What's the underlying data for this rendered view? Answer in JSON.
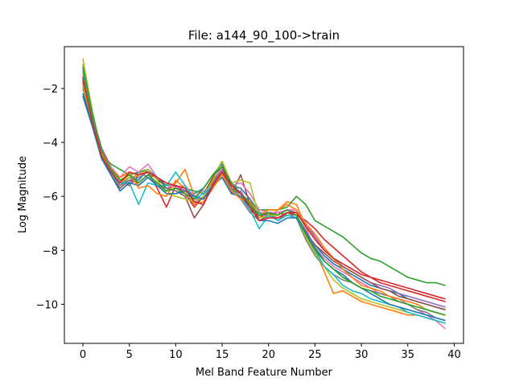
{
  "chart_data": {
    "type": "line",
    "title": "File: a144_90_100->train",
    "xlabel": "Mel Band Feature Number",
    "ylabel": "Log Magnitude",
    "xlim": [
      -2,
      41
    ],
    "ylim": [
      -11.45,
      -0.45
    ],
    "xticks": [
      0,
      5,
      10,
      15,
      20,
      25,
      30,
      35,
      40
    ],
    "yticks": [
      -2,
      -4,
      -6,
      -8,
      -10
    ],
    "grid": false,
    "legend": "none",
    "colors": [
      "#1f77b4",
      "#ff7f0e",
      "#2ca02c",
      "#d62728",
      "#9467bd",
      "#8c564b",
      "#e377c2",
      "#7f7f7f",
      "#bcbd22",
      "#17becf"
    ],
    "x": [
      0,
      1,
      2,
      3,
      4,
      5,
      6,
      7,
      8,
      9,
      10,
      11,
      12,
      13,
      14,
      15,
      16,
      17,
      18,
      19,
      20,
      21,
      22,
      23,
      24,
      25,
      26,
      27,
      28,
      29,
      30,
      31,
      32,
      33,
      34,
      35,
      36,
      37,
      38,
      39
    ],
    "series": [
      {
        "values": [
          -2.2,
          -3.3,
          -4.3,
          -5.1,
          -5.6,
          -5.3,
          -5.4,
          -5.0,
          -5.3,
          -5.6,
          -5.6,
          -5.8,
          -5.9,
          -5.7,
          -5.2,
          -4.8,
          -5.6,
          -5.7,
          -6.1,
          -6.6,
          -6.7,
          -6.8,
          -6.6,
          -6.7,
          -7.3,
          -7.8,
          -8.2,
          -8.5,
          -8.7,
          -8.9,
          -9.1,
          -9.3,
          -9.4,
          -9.5,
          -9.6,
          -9.8,
          -9.9,
          -10.0,
          -10.1,
          -10.2
        ]
      },
      {
        "values": [
          -1.5,
          -3.1,
          -4.5,
          -5.1,
          -5.5,
          -5.2,
          -5.6,
          -5.3,
          -5.6,
          -5.8,
          -5.5,
          -5.0,
          -6.0,
          -6.1,
          -5.5,
          -5.0,
          -5.8,
          -5.9,
          -6.3,
          -6.7,
          -6.8,
          -6.5,
          -6.2,
          -6.3,
          -7.1,
          -8.0,
          -8.8,
          -9.6,
          -9.5,
          -9.7,
          -9.9,
          -10.0,
          -10.1,
          -10.2,
          -10.3,
          -10.4,
          -10.4,
          -10.5,
          -10.6,
          -10.7
        ]
      },
      {
        "values": [
          -2.0,
          -3.2,
          -4.4,
          -4.8,
          -5.0,
          -5.2,
          -5.1,
          -5.0,
          -5.4,
          -5.6,
          -5.6,
          -5.7,
          -5.8,
          -5.9,
          -5.3,
          -4.7,
          -5.7,
          -5.9,
          -6.2,
          -6.5,
          -6.5,
          -6.5,
          -6.4,
          -6.0,
          -6.3,
          -6.9,
          -7.1,
          -7.3,
          -7.5,
          -7.8,
          -8.1,
          -8.3,
          -8.4,
          -8.6,
          -8.8,
          -9.0,
          -9.1,
          -9.2,
          -9.2,
          -9.3
        ]
      },
      {
        "values": [
          -1.8,
          -3.0,
          -4.2,
          -4.9,
          -5.4,
          -5.6,
          -5.2,
          -5.1,
          -5.7,
          -6.4,
          -5.6,
          -5.9,
          -6.4,
          -6.0,
          -5.3,
          -4.9,
          -5.8,
          -6.0,
          -6.5,
          -6.8,
          -6.6,
          -6.9,
          -6.6,
          -6.7,
          -6.9,
          -7.2,
          -7.6,
          -7.9,
          -8.2,
          -8.5,
          -8.8,
          -9.0,
          -9.2,
          -9.3,
          -9.4,
          -9.5,
          -9.6,
          -9.7,
          -9.8,
          -9.9
        ]
      },
      {
        "values": [
          -1.3,
          -3.1,
          -4.2,
          -5.0,
          -5.4,
          -5.5,
          -5.1,
          -5.3,
          -5.5,
          -5.7,
          -5.6,
          -5.8,
          -6.1,
          -6.1,
          -5.4,
          -5.0,
          -5.9,
          -5.8,
          -6.4,
          -6.7,
          -6.7,
          -6.7,
          -6.5,
          -6.6,
          -7.0,
          -7.5,
          -8.0,
          -8.3,
          -8.6,
          -8.8,
          -9.0,
          -9.2,
          -9.3,
          -9.4,
          -9.6,
          -9.7,
          -9.8,
          -9.9,
          -10.0,
          -10.1
        ]
      },
      {
        "values": [
          -1.6,
          -3.3,
          -4.4,
          -5.2,
          -5.7,
          -5.4,
          -5.5,
          -5.2,
          -5.3,
          -5.7,
          -5.8,
          -6.0,
          -6.8,
          -6.3,
          -5.5,
          -5.1,
          -5.9,
          -5.2,
          -6.3,
          -6.8,
          -6.7,
          -6.6,
          -6.7,
          -6.8,
          -7.4,
          -7.8,
          -8.1,
          -8.4,
          -8.6,
          -8.8,
          -9.0,
          -9.2,
          -9.4,
          -9.5,
          -9.7,
          -9.8,
          -9.9,
          -10.0,
          -10.1,
          -10.2
        ]
      },
      {
        "values": [
          -1.1,
          -3.0,
          -4.3,
          -4.9,
          -5.3,
          -4.9,
          -5.1,
          -4.8,
          -5.3,
          -5.5,
          -5.7,
          -5.6,
          -6.0,
          -5.8,
          -5.6,
          -5.2,
          -5.6,
          -5.5,
          -5.9,
          -6.5,
          -6.6,
          -6.6,
          -6.5,
          -6.5,
          -7.2,
          -7.9,
          -8.3,
          -8.6,
          -8.8,
          -9.0,
          -9.2,
          -9.4,
          -9.6,
          -9.7,
          -9.8,
          -10.0,
          -10.2,
          -10.4,
          -10.6,
          -10.9
        ]
      },
      {
        "values": [
          -1.7,
          -3.2,
          -4.5,
          -5.0,
          -5.6,
          -5.4,
          -5.3,
          -5.1,
          -5.6,
          -5.7,
          -5.8,
          -5.9,
          -6.3,
          -6.0,
          -5.4,
          -5.1,
          -5.7,
          -6.1,
          -6.6,
          -6.9,
          -6.7,
          -6.8,
          -6.6,
          -6.8,
          -7.6,
          -8.2,
          -8.6,
          -8.9,
          -9.1,
          -9.2,
          -9.4,
          -9.5,
          -9.6,
          -9.7,
          -9.9,
          -10.0,
          -10.2,
          -10.3,
          -10.5,
          -10.6
        ]
      },
      {
        "values": [
          -0.9,
          -2.8,
          -4.4,
          -5.1,
          -5.5,
          -5.3,
          -5.2,
          -5.0,
          -5.4,
          -5.9,
          -6.0,
          -6.1,
          -6.2,
          -6.0,
          -5.4,
          -4.7,
          -5.5,
          -5.4,
          -5.5,
          -6.8,
          -6.7,
          -6.7,
          -6.5,
          -6.7,
          -7.5,
          -8.1,
          -8.6,
          -9.1,
          -9.4,
          -9.6,
          -9.8,
          -9.9,
          -10.0,
          -10.1,
          -10.2,
          -10.3,
          -10.4,
          -10.5,
          -10.6,
          -10.7
        ]
      },
      {
        "values": [
          -1.4,
          -3.1,
          -4.3,
          -5.1,
          -5.5,
          -5.5,
          -6.3,
          -5.5,
          -5.6,
          -5.6,
          -5.1,
          -5.6,
          -6.1,
          -5.9,
          -5.6,
          -5.3,
          -5.8,
          -6.0,
          -6.5,
          -7.2,
          -6.7,
          -6.9,
          -6.7,
          -6.8,
          -7.4,
          -8.0,
          -8.6,
          -8.9,
          -9.3,
          -9.5,
          -9.6,
          -9.8,
          -9.9,
          -10.0,
          -10.1,
          -10.3,
          -10.4,
          -10.5,
          -10.6,
          -10.7
        ]
      },
      {
        "values": [
          -2.3,
          -3.4,
          -4.6,
          -5.2,
          -5.8,
          -5.5,
          -5.6,
          -5.3,
          -5.6,
          -5.9,
          -5.9,
          -5.8,
          -6.0,
          -6.1,
          -5.6,
          -5.3,
          -5.9,
          -6.0,
          -6.4,
          -6.9,
          -6.9,
          -7.0,
          -6.8,
          -6.8,
          -7.3,
          -7.9,
          -8.4,
          -8.7,
          -8.9,
          -9.2,
          -9.4,
          -9.6,
          -9.8,
          -10.0,
          -10.1,
          -10.2,
          -10.3,
          -10.4,
          -10.5,
          -10.6
        ]
      },
      {
        "values": [
          -1.9,
          -3.2,
          -4.4,
          -5.0,
          -5.3,
          -5.1,
          -5.7,
          -5.6,
          -5.9,
          -6.0,
          -5.4,
          -5.7,
          -6.3,
          -6.2,
          -5.7,
          -5.2,
          -5.8,
          -6.1,
          -6.2,
          -6.7,
          -6.5,
          -6.5,
          -6.3,
          -6.5,
          -7.0,
          -7.4,
          -7.9,
          -8.3,
          -8.7,
          -9.0,
          -9.3,
          -9.4,
          -9.5,
          -9.7,
          -9.8,
          -9.9,
          -10.0,
          -10.2,
          -10.3,
          -10.4
        ]
      },
      {
        "values": [
          -1.2,
          -2.9,
          -4.3,
          -5.0,
          -5.4,
          -5.2,
          -5.5,
          -5.2,
          -5.5,
          -5.8,
          -5.7,
          -5.9,
          -6.1,
          -5.7,
          -5.2,
          -4.9,
          -5.5,
          -5.9,
          -6.3,
          -6.7,
          -6.6,
          -6.7,
          -6.5,
          -6.7,
          -7.4,
          -8.0,
          -8.4,
          -8.7,
          -9.0,
          -9.2,
          -9.4,
          -9.5,
          -9.7,
          -9.8,
          -9.9,
          -10.0,
          -10.1,
          -10.2,
          -10.3,
          -10.4
        ]
      },
      {
        "values": [
          -1.6,
          -3.2,
          -4.5,
          -5.1,
          -5.5,
          -5.1,
          -5.2,
          -5.1,
          -5.3,
          -5.5,
          -5.6,
          -5.7,
          -6.2,
          -6.3,
          -5.6,
          -5.1,
          -5.6,
          -5.9,
          -6.4,
          -6.9,
          -6.8,
          -6.8,
          -6.6,
          -6.6,
          -7.1,
          -7.6,
          -8.0,
          -8.3,
          -8.5,
          -8.7,
          -8.9,
          -9.0,
          -9.1,
          -9.2,
          -9.3,
          -9.4,
          -9.5,
          -9.6,
          -9.7,
          -9.8
        ]
      }
    ]
  }
}
